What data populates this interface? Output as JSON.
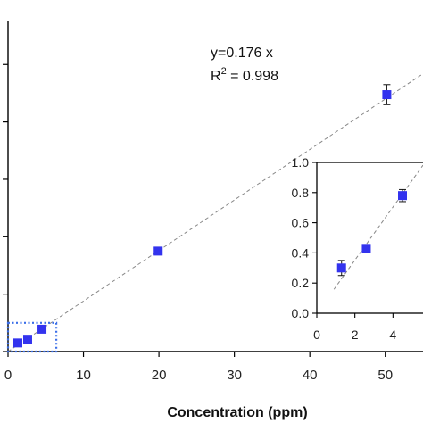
{
  "chart_data": [
    {
      "type": "scatter",
      "xlabel": "Concentration (ppm)",
      "xlim": [
        0,
        55
      ],
      "ylim": [
        0,
        11.5
      ],
      "x_ticks": [
        0,
        10,
        20,
        30,
        40,
        50
      ],
      "x_tick_labels": [
        "0",
        "10",
        "20",
        "30",
        "40",
        "50"
      ],
      "y_ticks": [
        0,
        2,
        4,
        6,
        8,
        10
      ],
      "grid": false,
      "series": [
        {
          "color": "#3333ee",
          "marker": "square",
          "points": [
            {
              "x": 1.3,
              "y": 0.3,
              "err": 0.05
            },
            {
              "x": 2.6,
              "y": 0.43,
              "err": 0.02
            },
            {
              "x": 4.5,
              "y": 0.78,
              "err": 0.04
            },
            {
              "x": 19.9,
              "y": 3.5,
              "err": 0.05
            },
            {
              "x": 50.2,
              "y": 8.95,
              "err": 0.35
            }
          ]
        }
      ],
      "fit_line": {
        "slope": 0.176,
        "intercept": 0,
        "x_range": [
          0,
          55
        ],
        "style": "dashed",
        "color": "#888888"
      },
      "annotations": {
        "equation": "y=0.176 x",
        "r2_prefix": "R",
        "r2_sup": "2",
        "r2_suffix": " = 0.998"
      },
      "zoom_box": {
        "x": [
          0,
          6.4
        ],
        "y": [
          0,
          1.0
        ],
        "style": "dotted",
        "color": "#3a6ee8"
      }
    },
    {
      "type": "scatter",
      "role": "inset",
      "xlim": [
        0,
        6
      ],
      "ylim": [
        0,
        1.0
      ],
      "x_ticks": [
        0,
        2,
        4
      ],
      "x_tick_labels": [
        "0",
        "2",
        "4"
      ],
      "y_ticks": [
        0.0,
        0.2,
        0.4,
        0.6,
        0.8,
        1.0
      ],
      "y_tick_labels": [
        "0.0",
        "0.2",
        "0.4",
        "0.6",
        "0.8",
        "1.0"
      ],
      "points": [
        {
          "x": 1.3,
          "y": 0.3,
          "err": 0.05
        },
        {
          "x": 2.6,
          "y": 0.43,
          "err": 0.02
        },
        {
          "x": 4.5,
          "y": 0.78,
          "err": 0.04
        }
      ],
      "fit_line": {
        "slope": 0.176,
        "intercept": 0,
        "style": "dashed",
        "color": "#888888"
      }
    }
  ]
}
